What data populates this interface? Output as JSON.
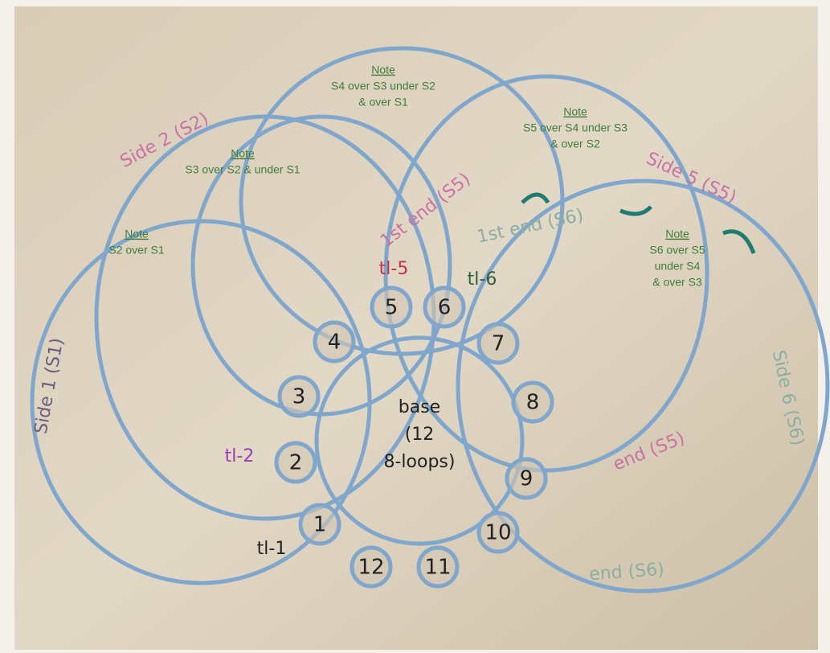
{
  "base": {
    "lines": [
      "base",
      "(12",
      "8-loops)"
    ]
  },
  "loops": [
    "1",
    "2",
    "3",
    "4",
    "5",
    "6",
    "7",
    "8",
    "9",
    "10",
    "11",
    "12"
  ],
  "side_labels": [
    "Side 1 (S1)",
    "Side 2 (S2)",
    "Side 5 (S5)",
    "Side 6 (S6)"
  ],
  "end_labels": [
    "1st end (S5)",
    "1st end (S6)",
    "end (S5)",
    "end (S6)"
  ],
  "tie_labels": [
    "tl-1",
    "tl-2",
    "tl-5",
    "tl-6"
  ],
  "notes": [
    {
      "heading": "Note",
      "lines": [
        "S2 over S1"
      ]
    },
    {
      "heading": "Note",
      "lines": [
        "S3 over S2 & under S1"
      ]
    },
    {
      "heading": "Note",
      "lines": [
        "S4 over S3 under S2",
        "& over S1"
      ]
    },
    {
      "heading": "Note",
      "lines": [
        "S5 over S4 under S3",
        "& over S2"
      ]
    },
    {
      "heading": "Note",
      "lines": [
        "S6 over S5",
        "under S4",
        "& over S3"
      ]
    }
  ]
}
